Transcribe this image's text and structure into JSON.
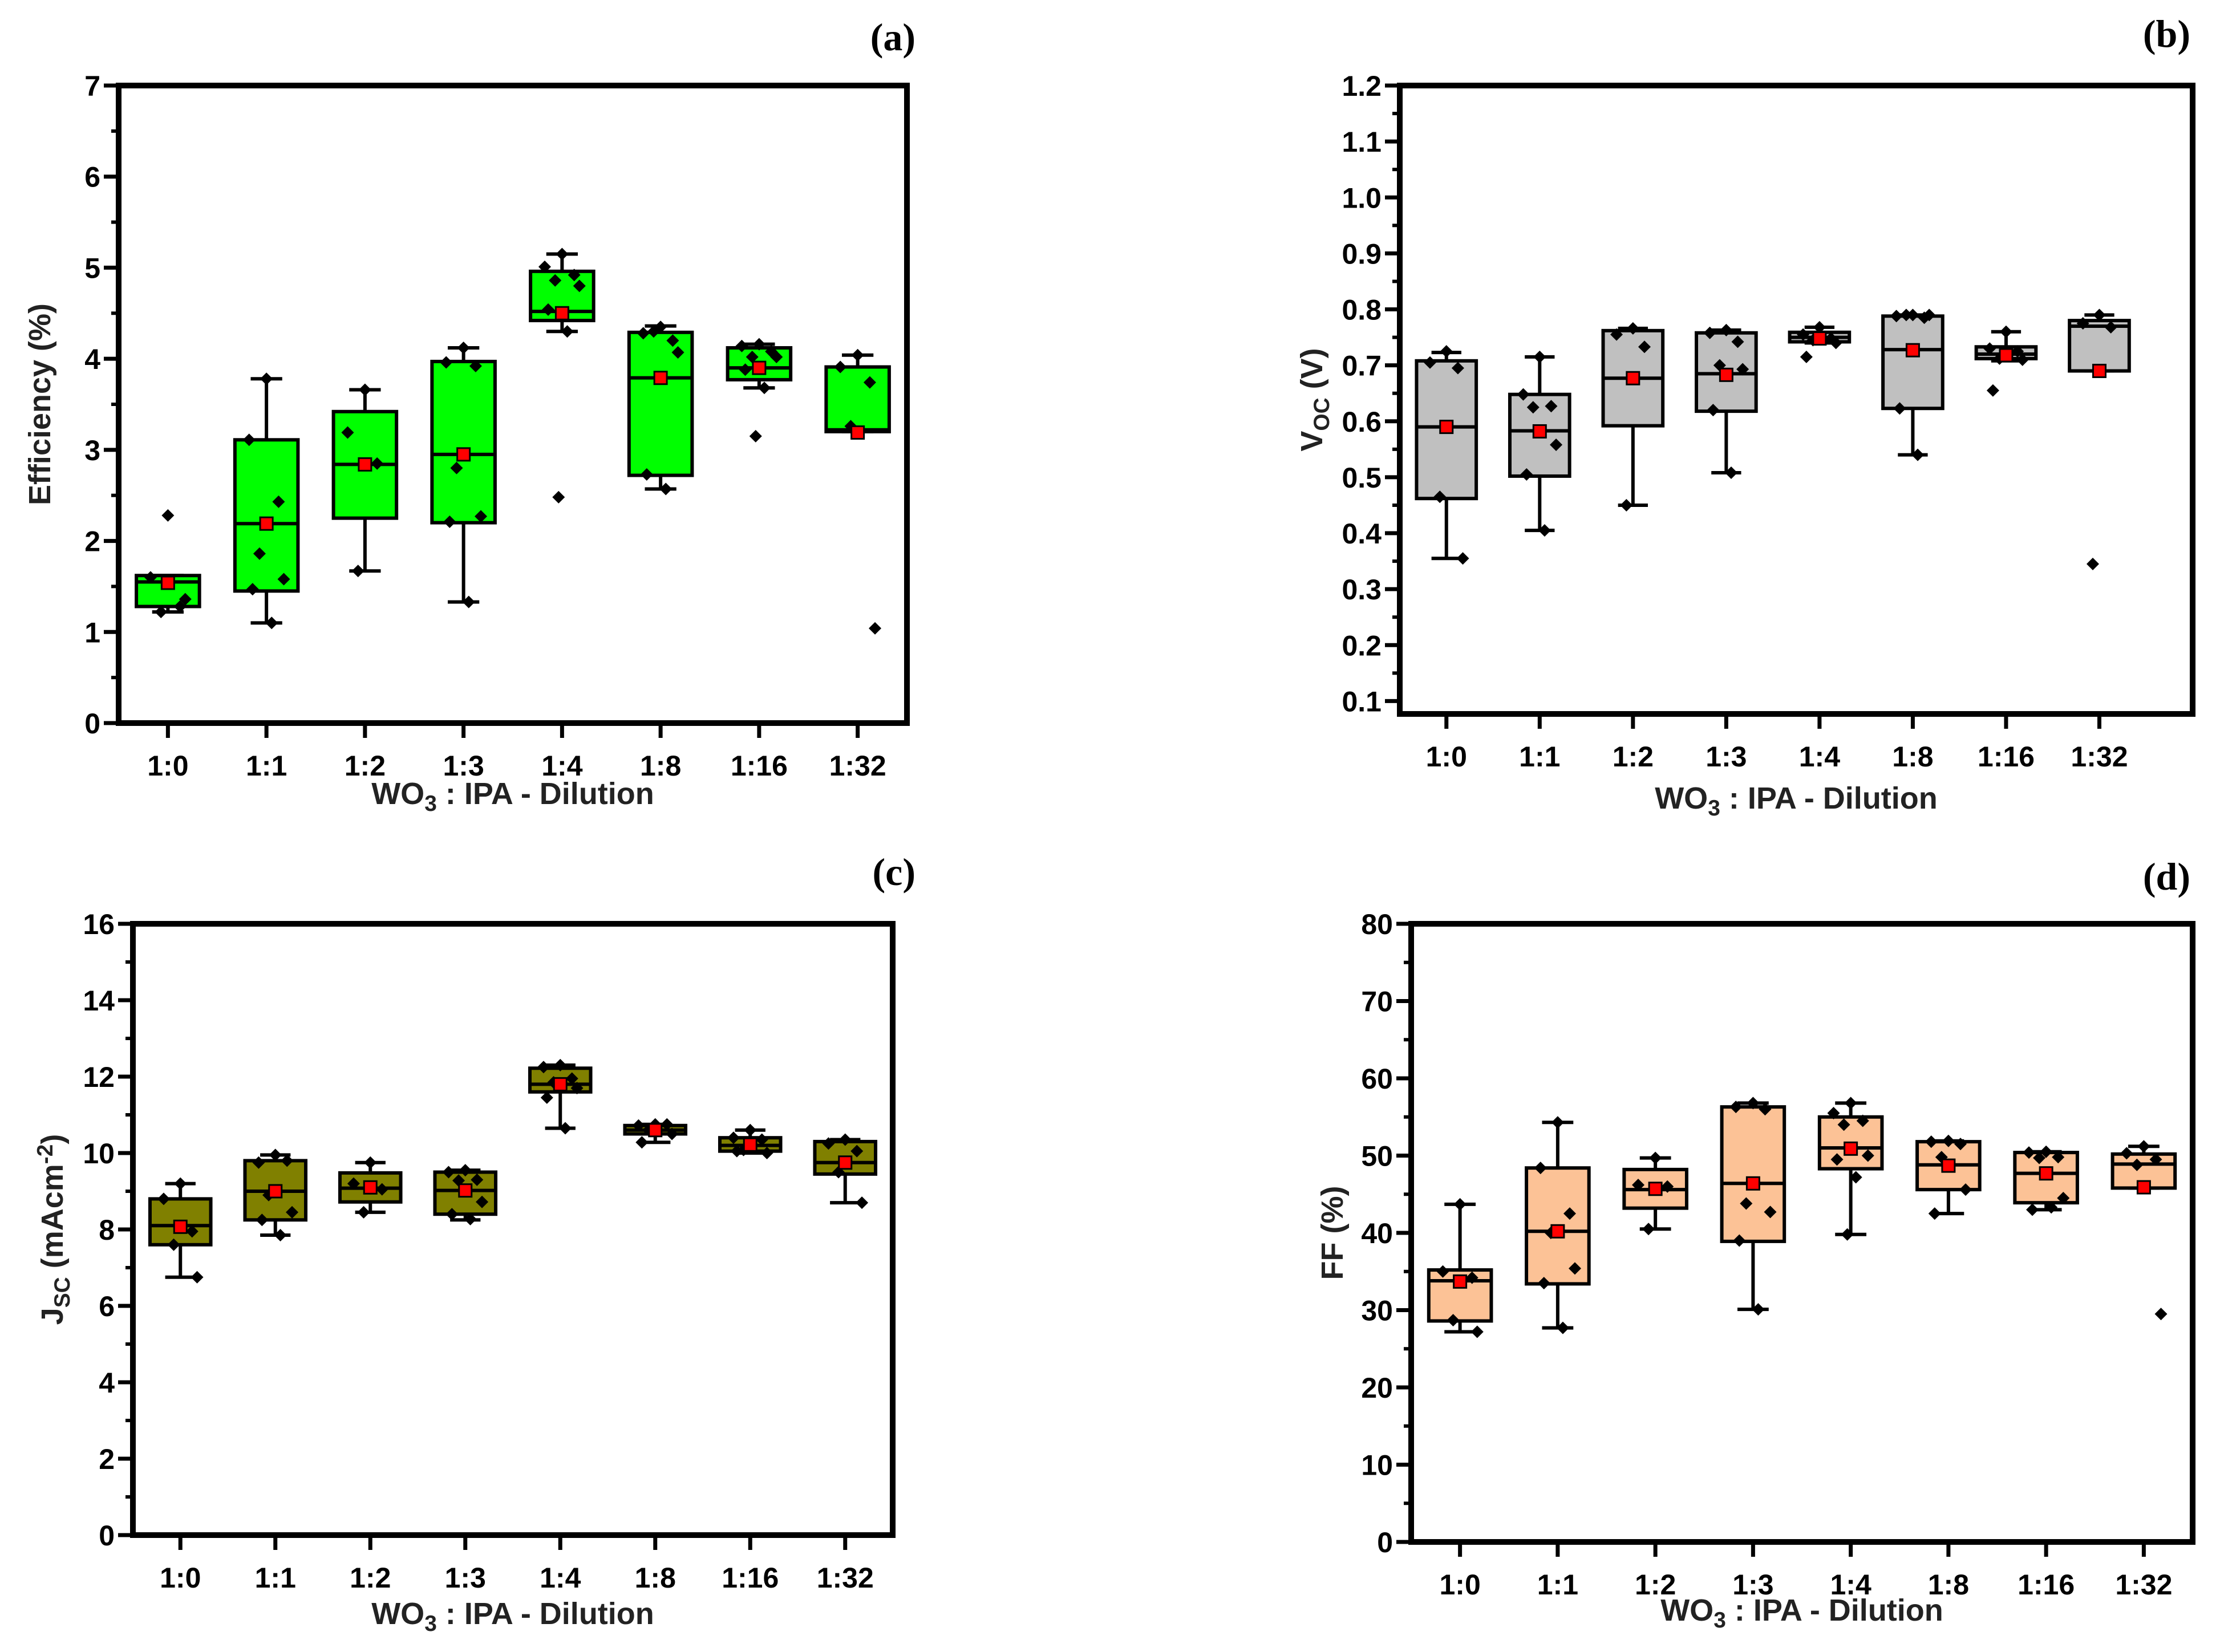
{
  "chart_data": [
    {
      "panel_label": "(a)",
      "type": "box",
      "categories": [
        "1:0",
        "1:1",
        "1:2",
        "1:3",
        "1:4",
        "1:8",
        "1:16",
        "1:32"
      ],
      "xlabel": {
        "parts": [
          [
            "WO",
            "n"
          ],
          [
            "3",
            "sub"
          ],
          [
            " : IPA - Dilution",
            "n"
          ]
        ]
      },
      "ylabel": {
        "parts": [
          [
            "Efficiency (%)",
            "n"
          ]
        ]
      },
      "ylim": [
        0,
        7
      ],
      "yticks": [
        0,
        1,
        2,
        3,
        4,
        5,
        6,
        7
      ],
      "xlim": [
        -0.5,
        7.5
      ],
      "box_color": "#00ff00",
      "mean_color": "#ff0000",
      "boxes": [
        {
          "low": 1.22,
          "q1": 1.28,
          "median": 1.55,
          "q3": 1.62,
          "high": 1.62,
          "mean": 1.54,
          "points": [
            2.28,
            1.6,
            1.28,
            1.22,
            1.36
          ]
        },
        {
          "low": 1.1,
          "q1": 1.45,
          "median": 2.19,
          "q3": 3.11,
          "high": 3.78,
          "mean": 2.19,
          "points": [
            3.78,
            3.11,
            2.43,
            1.86,
            1.58,
            1.47,
            1.1
          ]
        },
        {
          "low": 1.67,
          "q1": 2.25,
          "median": 2.84,
          "q3": 3.42,
          "high": 3.66,
          "mean": 2.84,
          "points": [
            3.66,
            3.19,
            2.85,
            1.67
          ]
        },
        {
          "low": 1.33,
          "q1": 2.2,
          "median": 2.95,
          "q3": 3.97,
          "high": 4.12,
          "mean": 2.95,
          "points": [
            4.12,
            3.96,
            3.92,
            2.8,
            2.27,
            2.21,
            1.33
          ]
        },
        {
          "low": 4.3,
          "q1": 4.42,
          "median": 4.52,
          "q3": 4.96,
          "high": 5.15,
          "mean": 4.5,
          "points": [
            5.15,
            5.01,
            4.92,
            4.86,
            4.8,
            4.54,
            4.3,
            2.48
          ]
        },
        {
          "low": 2.57,
          "q1": 2.72,
          "median": 3.79,
          "q3": 4.29,
          "high": 4.36,
          "mean": 3.79,
          "points": [
            4.35,
            4.28,
            4.2,
            4.3,
            4.07,
            2.73,
            2.57
          ]
        },
        {
          "low": 3.68,
          "q1": 3.77,
          "median": 3.9,
          "q3": 4.12,
          "high": 4.16,
          "mean": 3.9,
          "points": [
            4.16,
            4.14,
            4.08,
            4.02,
            4.02,
            3.88,
            3.68,
            3.15
          ]
        },
        {
          "low": 3.2,
          "q1": 3.2,
          "median": 3.22,
          "q3": 3.91,
          "high": 4.04,
          "mean": 3.19,
          "points": [
            4.04,
            3.91,
            3.74,
            3.26,
            1.04
          ]
        }
      ]
    },
    {
      "panel_label": "(b)",
      "type": "box",
      "categories": [
        "1:0",
        "1:1",
        "1:2",
        "1:3",
        "1:4",
        "1:8",
        "1:16",
        "1:32"
      ],
      "xlabel": {
        "parts": [
          [
            "WO",
            "n"
          ],
          [
            "3",
            "sub"
          ],
          [
            " : IPA - Dilution",
            "n"
          ]
        ]
      },
      "ylabel": {
        "parts": [
          [
            "V",
            "n"
          ],
          [
            "OC",
            "sub"
          ],
          [
            " (V)",
            "n"
          ]
        ]
      },
      "ylim": [
        0.077,
        1.2
      ],
      "yticks": [
        0.1,
        0.2,
        0.3,
        0.4,
        0.5,
        0.6,
        0.7,
        0.8,
        0.9,
        1.0,
        1.1,
        1.2
      ],
      "ytick_labels": [
        "0.1",
        "0.2",
        "0.3",
        "0.4",
        "0.5",
        "0.6",
        "0.7",
        "0.8",
        "0.9",
        "1.0",
        "1.1",
        "1.2"
      ],
      "xlim": [
        -0.5,
        8.0
      ],
      "box_color": "#c0c0c0",
      "mean_color": "#ff0000",
      "boxes": [
        {
          "low": 0.355,
          "q1": 0.462,
          "median": 0.59,
          "q3": 0.708,
          "high": 0.723,
          "mean": 0.59,
          "points": [
            0.725,
            0.705,
            0.695,
            0.465,
            0.355
          ]
        },
        {
          "low": 0.405,
          "q1": 0.502,
          "median": 0.583,
          "q3": 0.648,
          "high": 0.715,
          "mean": 0.582,
          "points": [
            0.715,
            0.648,
            0.627,
            0.625,
            0.558,
            0.505,
            0.405
          ]
        },
        {
          "low": 0.45,
          "q1": 0.592,
          "median": 0.677,
          "q3": 0.762,
          "high": 0.766,
          "mean": 0.677,
          "points": [
            0.766,
            0.755,
            0.733,
            0.45
          ]
        },
        {
          "low": 0.508,
          "q1": 0.618,
          "median": 0.685,
          "q3": 0.758,
          "high": 0.763,
          "mean": 0.683,
          "points": [
            0.763,
            0.758,
            0.742,
            0.7,
            0.693,
            0.62,
            0.508
          ]
        },
        {
          "low": 0.74,
          "q1": 0.742,
          "median": 0.75,
          "q3": 0.759,
          "high": 0.768,
          "mean": 0.748,
          "points": [
            0.768,
            0.755,
            0.748,
            0.745,
            0.74,
            0.715
          ]
        },
        {
          "low": 0.54,
          "q1": 0.623,
          "median": 0.728,
          "q3": 0.788,
          "high": 0.79,
          "mean": 0.727,
          "points": [
            0.79,
            0.788,
            0.785,
            0.79,
            0.79,
            0.623,
            0.54
          ]
        },
        {
          "low": 0.708,
          "q1": 0.712,
          "median": 0.72,
          "q3": 0.733,
          "high": 0.76,
          "mean": 0.718,
          "points": [
            0.76,
            0.73,
            0.725,
            0.712,
            0.71,
            0.655
          ]
        },
        {
          "low": 0.69,
          "q1": 0.69,
          "median": 0.77,
          "q3": 0.78,
          "high": 0.79,
          "mean": 0.69,
          "points": [
            0.79,
            0.775,
            0.768,
            0.345
          ]
        }
      ]
    },
    {
      "panel_label": "(c)",
      "type": "box",
      "categories": [
        "1:0",
        "1:1",
        "1:2",
        "1:3",
        "1:4",
        "1:8",
        "1:16",
        "1:32"
      ],
      "xlabel": {
        "parts": [
          [
            "WO",
            "n"
          ],
          [
            "3",
            "sub"
          ],
          [
            " : IPA - Dilution",
            "n"
          ]
        ]
      },
      "ylabel": {
        "parts": [
          [
            "J",
            "n"
          ],
          [
            "SC",
            "sub"
          ],
          [
            " (mAcm",
            "n"
          ],
          [
            "-2",
            "sup"
          ],
          [
            ")",
            "n"
          ]
        ]
      },
      "ylim": [
        0,
        16
      ],
      "yticks": [
        0,
        2,
        4,
        6,
        8,
        10,
        12,
        14,
        16
      ],
      "xlim": [
        -0.5,
        7.5
      ],
      "box_color": "#808000",
      "mean_color": "#ff0000",
      "boxes": [
        {
          "low": 6.75,
          "q1": 7.6,
          "median": 8.1,
          "q3": 8.8,
          "high": 9.2,
          "mean": 8.07,
          "points": [
            9.2,
            8.8,
            7.95,
            7.6,
            6.75
          ]
        },
        {
          "low": 7.85,
          "q1": 8.25,
          "median": 9.0,
          "q3": 9.8,
          "high": 9.95,
          "mean": 9.0,
          "points": [
            9.95,
            9.75,
            9.8,
            8.9,
            8.45,
            8.25,
            7.85
          ]
        },
        {
          "low": 8.45,
          "q1": 8.72,
          "median": 9.08,
          "q3": 9.48,
          "high": 9.75,
          "mean": 9.1,
          "points": [
            9.75,
            9.2,
            9.05,
            8.45
          ]
        },
        {
          "low": 8.25,
          "q1": 8.4,
          "median": 9.02,
          "q3": 9.5,
          "high": 9.55,
          "mean": 9.02,
          "points": [
            9.55,
            9.5,
            9.3,
            9.28,
            8.72,
            8.4,
            8.27
          ]
        },
        {
          "low": 10.65,
          "q1": 11.6,
          "median": 11.8,
          "q3": 12.22,
          "high": 12.3,
          "mean": 11.8,
          "points": [
            12.3,
            12.25,
            11.95,
            11.85,
            11.7,
            11.45,
            10.65
          ]
        },
        {
          "low": 10.28,
          "q1": 10.5,
          "median": 10.6,
          "q3": 10.72,
          "high": 10.75,
          "mean": 10.6,
          "points": [
            10.75,
            10.72,
            10.75,
            10.6,
            10.5,
            10.28
          ]
        },
        {
          "low": 10.0,
          "q1": 10.05,
          "median": 10.2,
          "q3": 10.4,
          "high": 10.6,
          "mean": 10.22,
          "points": [
            10.6,
            10.4,
            10.35,
            10.08,
            10.0,
            10.05
          ]
        },
        {
          "low": 8.7,
          "q1": 9.45,
          "median": 9.75,
          "q3": 10.3,
          "high": 10.35,
          "mean": 9.75,
          "points": [
            10.35,
            10.25,
            10.05,
            9.5,
            8.7
          ]
        }
      ]
    },
    {
      "panel_label": "(d)",
      "type": "box",
      "categories": [
        "1:0",
        "1:1",
        "1:2",
        "1:3",
        "1:4",
        "1:8",
        "1:16",
        "1:32"
      ],
      "xlabel": {
        "parts": [
          [
            "WO",
            "n"
          ],
          [
            "3",
            "sub"
          ],
          [
            " : IPA - Dilution",
            "n"
          ]
        ]
      },
      "ylabel": {
        "parts": [
          [
            "FF (%)",
            "n"
          ]
        ]
      },
      "ylim": [
        0,
        80
      ],
      "yticks": [
        0,
        10,
        20,
        30,
        40,
        50,
        60,
        70,
        80
      ],
      "xlim": [
        -0.5,
        7.5
      ],
      "box_color": "#fcc296",
      "mean_color": "#ff0000",
      "boxes": [
        {
          "low": 27.2,
          "q1": 28.6,
          "median": 33.8,
          "q3": 35.2,
          "high": 43.7,
          "mean": 33.7,
          "points": [
            43.7,
            35,
            34.2,
            28.7,
            27.2
          ]
        },
        {
          "low": 27.7,
          "q1": 33.4,
          "median": 40.2,
          "q3": 48.4,
          "high": 54.3,
          "mean": 40.2,
          "points": [
            54.3,
            48.4,
            42.5,
            40,
            35.4,
            33.5,
            27.7
          ]
        },
        {
          "low": 40.5,
          "q1": 43.2,
          "median": 45.6,
          "q3": 48.2,
          "high": 49.7,
          "mean": 45.7,
          "points": [
            49.7,
            46.2,
            46,
            40.5
          ]
        },
        {
          "low": 30.1,
          "q1": 38.9,
          "median": 46.4,
          "q3": 56.3,
          "high": 56.8,
          "mean": 46.4,
          "points": [
            56.8,
            56.3,
            56,
            43.8,
            42.7,
            39,
            30.1
          ]
        },
        {
          "low": 39.8,
          "q1": 48.3,
          "median": 51,
          "q3": 55,
          "high": 56.8,
          "mean": 50.9,
          "points": [
            56.8,
            55.5,
            54.5,
            54,
            50,
            49.5,
            47.2,
            39.8
          ]
        },
        {
          "low": 42.5,
          "q1": 45.6,
          "median": 48.8,
          "q3": 51.8,
          "high": 51.9,
          "mean": 48.7,
          "points": [
            51.9,
            51.8,
            51.5,
            49.8,
            45.6,
            42.5
          ]
        },
        {
          "low": 43,
          "q1": 43.9,
          "median": 47.7,
          "q3": 50.4,
          "high": 50.5,
          "mean": 47.7,
          "points": [
            50.5,
            50.4,
            49.8,
            49.7,
            44.5,
            43,
            43.3
          ]
        },
        {
          "low": 45.8,
          "q1": 45.8,
          "median": 48.9,
          "q3": 50.2,
          "high": 51.2,
          "mean": 45.9,
          "points": [
            51.2,
            50.3,
            49.5,
            48.8,
            29.5
          ]
        }
      ]
    }
  ]
}
